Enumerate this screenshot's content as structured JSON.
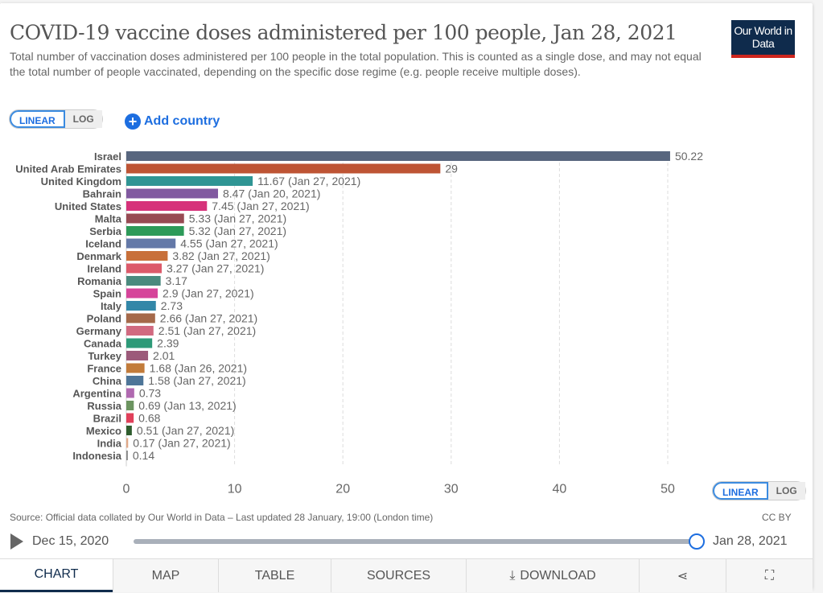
{
  "header": {
    "title": "COVID-19 vaccine doses administered per 100 people, Jan 28, 2021",
    "subtitle": "Total number of vaccination doses administered per 100 people in the total population. This is counted as a single dose, and may not equal the total number of people vaccinated, depending on the specific dose regime (e.g. people receive multiple doses).",
    "logo": "Our World in Data"
  },
  "controls": {
    "linear": "LINEAR",
    "log": "LOG",
    "add_country": "Add country"
  },
  "chart_data": {
    "type": "bar",
    "orientation": "horizontal",
    "xlim": [
      0,
      52
    ],
    "xticks": [
      0,
      10,
      20,
      30,
      40,
      50
    ],
    "grid": "vertical dashed",
    "scale": "linear",
    "categories": [
      "Israel",
      "United Arab Emirates",
      "United Kingdom",
      "Bahrain",
      "United States",
      "Malta",
      "Serbia",
      "Iceland",
      "Denmark",
      "Ireland",
      "Romania",
      "Spain",
      "Italy",
      "Poland",
      "Germany",
      "Canada",
      "Turkey",
      "France",
      "China",
      "Argentina",
      "Russia",
      "Brazil",
      "Mexico",
      "India",
      "Indonesia"
    ],
    "values": [
      50.22,
      29,
      11.67,
      8.47,
      7.45,
      5.33,
      5.32,
      4.55,
      3.82,
      3.27,
      3.17,
      2.9,
      2.73,
      2.66,
      2.51,
      2.39,
      2.01,
      1.68,
      1.58,
      0.73,
      0.69,
      0.68,
      0.51,
      0.17,
      0.14
    ],
    "labels": [
      "50.22",
      "29",
      "11.67 (Jan 27, 2021)",
      "8.47 (Jan 20, 2021)",
      "7.45 (Jan 27, 2021)",
      "5.33 (Jan 27, 2021)",
      "5.32 (Jan 27, 2021)",
      "4.55 (Jan 27, 2021)",
      "3.82 (Jan 27, 2021)",
      "3.27 (Jan 27, 2021)",
      "3.17",
      "2.9 (Jan 27, 2021)",
      "2.73",
      "2.66 (Jan 27, 2021)",
      "2.51 (Jan 27, 2021)",
      "2.39",
      "2.01",
      "1.68 (Jan 26, 2021)",
      "1.58 (Jan 27, 2021)",
      "0.73",
      "0.69 (Jan 13, 2021)",
      "0.68",
      "0.51 (Jan 27, 2021)",
      "0.17 (Jan 27, 2021)",
      "0.14"
    ],
    "colors": [
      "#58667e",
      "#be5434",
      "#2f9594",
      "#8159a0",
      "#d6327a",
      "#974a53",
      "#2d9a59",
      "#6479a8",
      "#c8703a",
      "#dc5a6a",
      "#4a8a7e",
      "#d6449a",
      "#3287a8",
      "#a5694a",
      "#d16a80",
      "#2e9a78",
      "#9c5a7a",
      "#c27b3a",
      "#4e7598",
      "#b069b0",
      "#6c9460",
      "#e0405a",
      "#2f5d2e",
      "#e0a888",
      "#888888"
    ]
  },
  "footer": {
    "source": "Source: Official data collated by Our World in Data – Last updated 28 January, 19:00 (London time)",
    "license": "CC BY",
    "start_date": "Dec 15, 2020",
    "end_date": "Jan 28, 2021",
    "timeline_position": 1.0
  },
  "tabs": [
    {
      "label": "CHART"
    },
    {
      "label": "MAP"
    },
    {
      "label": "TABLE"
    },
    {
      "label": "SOURCES"
    },
    {
      "label": "DOWNLOAD"
    },
    {
      "label": ""
    },
    {
      "label": ""
    }
  ]
}
